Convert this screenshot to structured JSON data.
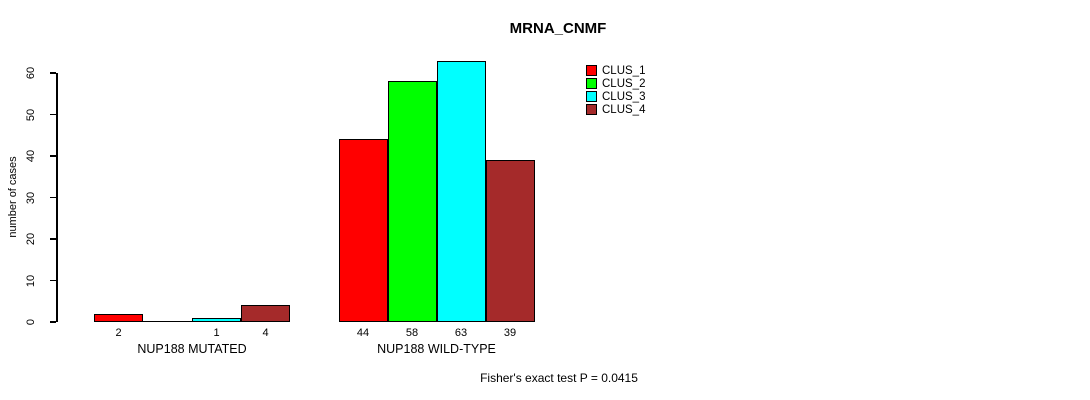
{
  "chart_data": {
    "type": "bar",
    "title": "MRNA_CNMF",
    "ylabel": "number of cases",
    "ylim": [
      0,
      60
    ],
    "yticks": [
      0,
      10,
      20,
      30,
      40,
      50,
      60
    ],
    "grid": false,
    "legend_position": "top-right",
    "legend": [
      {
        "label": "CLUS_1",
        "color": "#ff0000"
      },
      {
        "label": "CLUS_2",
        "color": "#00ff00"
      },
      {
        "label": "CLUS_3",
        "color": "#00ffff"
      },
      {
        "label": "CLUS_4",
        "color": "#a52a2a"
      }
    ],
    "categories": [
      "NUP188 MUTATED",
      "NUP188 WILD-TYPE"
    ],
    "series": [
      {
        "name": "CLUS_1",
        "values": [
          2,
          44
        ]
      },
      {
        "name": "CLUS_2",
        "values": [
          0,
          58
        ]
      },
      {
        "name": "CLUS_3",
        "values": [
          1,
          63
        ]
      },
      {
        "name": "CLUS_4",
        "values": [
          4,
          39
        ]
      }
    ],
    "bar_value_labels_shown_only_when_nonzero": true,
    "annotation": "Fisher's exact test P = 0.0415"
  }
}
